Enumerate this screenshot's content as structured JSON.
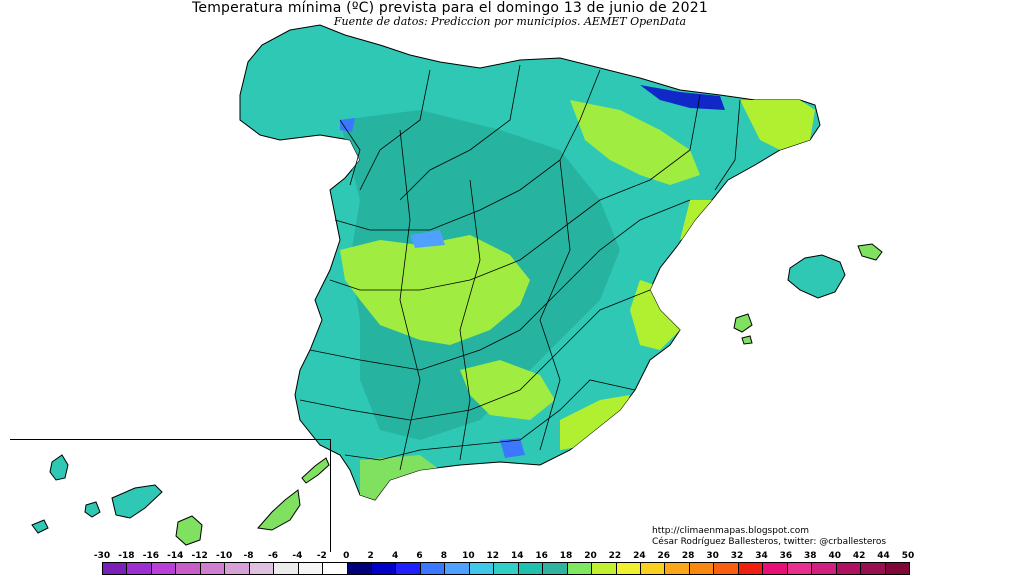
{
  "title": "Temperatura mínima (ºC) prevista para el domingo 13 de junio de 2021",
  "subtitle": "Fuente de datos: Prediccion por municipios. AEMET OpenData",
  "credits": {
    "url": "http://climaenmapas.blogspot.com",
    "author": "César Rodríguez Ballesteros, twitter: @crballesteros"
  },
  "legend": {
    "labels": [
      "-30",
      "-18",
      "-16",
      "-14",
      "-12",
      "-10",
      "-8",
      "-6",
      "-4",
      "-2",
      "0",
      "2",
      "4",
      "6",
      "8",
      "10",
      "12",
      "14",
      "16",
      "18",
      "20",
      "22",
      "24",
      "26",
      "28",
      "30",
      "32",
      "34",
      "36",
      "38",
      "40",
      "42",
      "44",
      "50"
    ],
    "colors": [
      "#7a1fb8",
      "#9b2fd0",
      "#b83fd8",
      "#c85fc8",
      "#d07fd0",
      "#d8a0d8",
      "#e0c0e0",
      "#ececec",
      "#f6f6f6",
      "#ffffff",
      "#00007a",
      "#0000c8",
      "#2020ff",
      "#3c78ff",
      "#50a0ff",
      "#40c8e8",
      "#30d0c8",
      "#20c0b0",
      "#30b4a0",
      "#80e860",
      "#c0f030",
      "#f0f030",
      "#f8d020",
      "#f8a818",
      "#f88810",
      "#f86010",
      "#f02010",
      "#e81078",
      "#e83090",
      "#d02080",
      "#b01060",
      "#981050",
      "#800838"
    ]
  },
  "regions": {
    "mainland": "peninsula",
    "islands": [
      "Baleares",
      "Canarias"
    ]
  }
}
